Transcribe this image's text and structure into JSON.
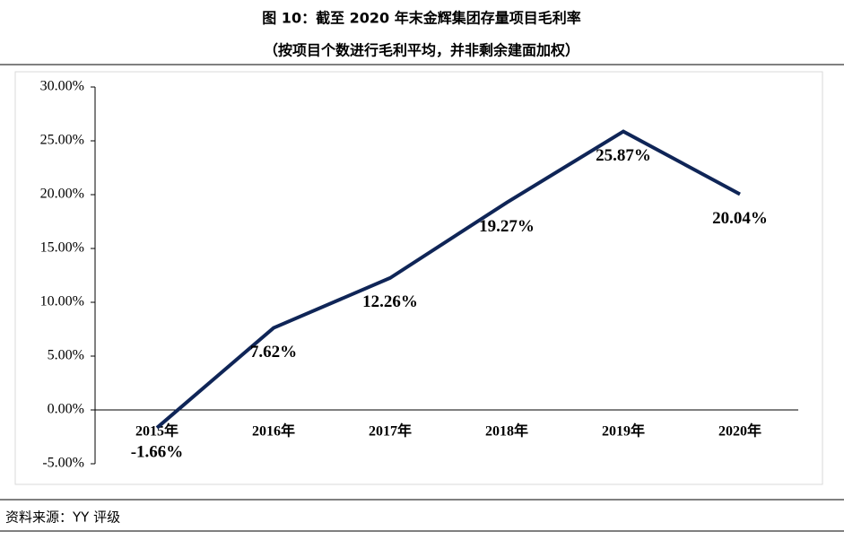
{
  "chart_data": {
    "type": "line",
    "title": "图 10：截至 2020 年末金辉集团存量项目毛利率",
    "subtitle": "（按项目个数进行毛利平均，并非剩余建面加权）",
    "source": "资料来源：YY 评级",
    "categories": [
      "2015年",
      "2016年",
      "2017年",
      "2018年",
      "2019年",
      "2020年"
    ],
    "values": [
      -1.66,
      7.62,
      12.26,
      19.27,
      25.87,
      20.04
    ],
    "value_labels": [
      "-1.66%",
      "7.62%",
      "12.26%",
      "19.27%",
      "25.87%",
      "20.04%"
    ],
    "color": "#0f2557",
    "ylim": [
      -5,
      30
    ],
    "yticks": [
      {
        "value": -5,
        "label": "-5.00%"
      },
      {
        "value": 0,
        "label": "0.00%"
      },
      {
        "value": 5,
        "label": "5.00%"
      },
      {
        "value": 10,
        "label": "10.00%"
      },
      {
        "value": 15,
        "label": "15.00%"
      },
      {
        "value": 20,
        "label": "20.00%"
      },
      {
        "value": 25,
        "label": "25.00%"
      },
      {
        "value": 30,
        "label": "30.00%"
      }
    ],
    "grid": false
  }
}
